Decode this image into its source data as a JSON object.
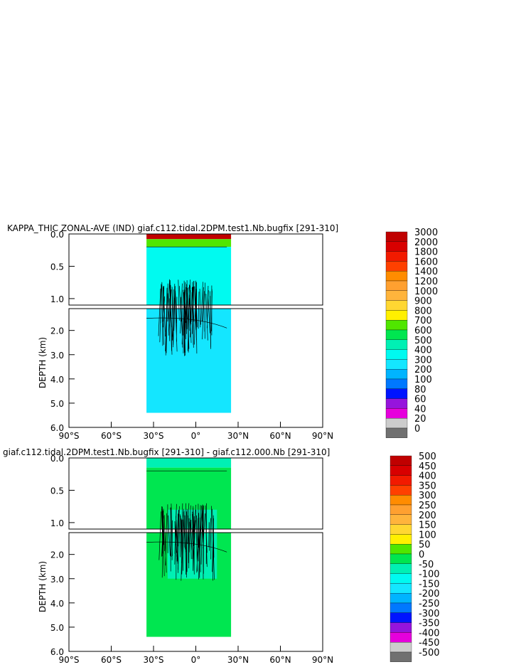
{
  "chart_data": [
    {
      "type": "heatmap",
      "title": "KAPPA_THIC ZONAL-AVE (IND) giaf.c112.tidal.2DPM.test1.Nb.bugfix [291-310]",
      "ylabel": "DEPTH (km)",
      "x_ticks": [
        "90°S",
        "60°S",
        "30°S",
        "0°",
        "30°N",
        "60°N",
        "90°N"
      ],
      "y_ticks_upper": [
        "0.0",
        "0.5",
        "1.0"
      ],
      "y_ticks_lower": [
        "2.0",
        "3.0",
        "4.0",
        "5.0",
        "6.0"
      ],
      "xlim": [
        -90,
        90
      ],
      "ylim_upper": [
        0,
        1.1
      ],
      "ylim_lower": [
        1.1,
        6.0
      ],
      "colorbar": {
        "levels": [
          "3000",
          "2000",
          "1800",
          "1600",
          "1400",
          "1200",
          "1000",
          "900",
          "800",
          "700",
          "600",
          "500",
          "400",
          "300",
          "200",
          "100",
          "80",
          "60",
          "40",
          "20",
          "0"
        ],
        "colors": [
          "#c00000",
          "#d80000",
          "#f21a00",
          "#ff4000",
          "#ff8c00",
          "#ffa030",
          "#ffb43c",
          "#ffd732",
          "#fff000",
          "#50e600",
          "#00e650",
          "#00f0b4",
          "#00faf0",
          "#14e6ff",
          "#00b4ff",
          "#0078ff",
          "#0014ff",
          "#9614dc",
          "#e600dc",
          "#cccccc",
          "#707070"
        ]
      },
      "regions": [
        {
          "x": [
            -35,
            25
          ],
          "depth": [
            0,
            0.08
          ],
          "value": 3000
        },
        {
          "x": [
            -35,
            25
          ],
          "depth": [
            0.08,
            0.2
          ],
          "value": 700
        },
        {
          "x": [
            -35,
            25
          ],
          "depth": [
            0.2,
            1.1
          ],
          "value": 400
        },
        {
          "x": [
            -35,
            25
          ],
          "depth": [
            1.1,
            5.4
          ],
          "value": 300
        }
      ]
    },
    {
      "type": "heatmap",
      "title": "giaf.c112.tidal.2DPM.test1.Nb.bugfix [291-310] - giaf.c112.000.Nb [291-310]",
      "ylabel": "DEPTH (km)",
      "x_ticks": [
        "90°S",
        "60°S",
        "30°S",
        "0°",
        "30°N",
        "60°N",
        "90°N"
      ],
      "y_ticks_upper": [
        "0.0",
        "0.5",
        "1.0"
      ],
      "y_ticks_lower": [
        "2.0",
        "3.0",
        "4.0",
        "5.0",
        "6.0"
      ],
      "xlim": [
        -90,
        90
      ],
      "ylim_upper": [
        0,
        1.1
      ],
      "ylim_lower": [
        1.1,
        6.0
      ],
      "colorbar": {
        "levels": [
          "500",
          "450",
          "400",
          "350",
          "300",
          "250",
          "200",
          "150",
          "100",
          "50",
          "0",
          "-50",
          "-100",
          "-150",
          "-200",
          "-250",
          "-300",
          "-350",
          "-400",
          "-450",
          "-500"
        ],
        "colors": [
          "#c00000",
          "#d80000",
          "#f21a00",
          "#ff4000",
          "#ff8c00",
          "#ffa030",
          "#ffb43c",
          "#ffd732",
          "#fff000",
          "#50e600",
          "#00e650",
          "#00f0b4",
          "#00faf0",
          "#14e6ff",
          "#00b4ff",
          "#0078ff",
          "#0014ff",
          "#9614dc",
          "#e600dc",
          "#cccccc",
          "#707070"
        ]
      },
      "regions": [
        {
          "x": [
            -35,
            25
          ],
          "depth": [
            0,
            0.15
          ],
          "value": -50
        },
        {
          "x": [
            -35,
            25
          ],
          "depth": [
            0.15,
            5.4
          ],
          "value": 0
        },
        {
          "x": [
            -20,
            15
          ],
          "depth": [
            0.8,
            3.0
          ],
          "value": -50
        }
      ]
    }
  ]
}
